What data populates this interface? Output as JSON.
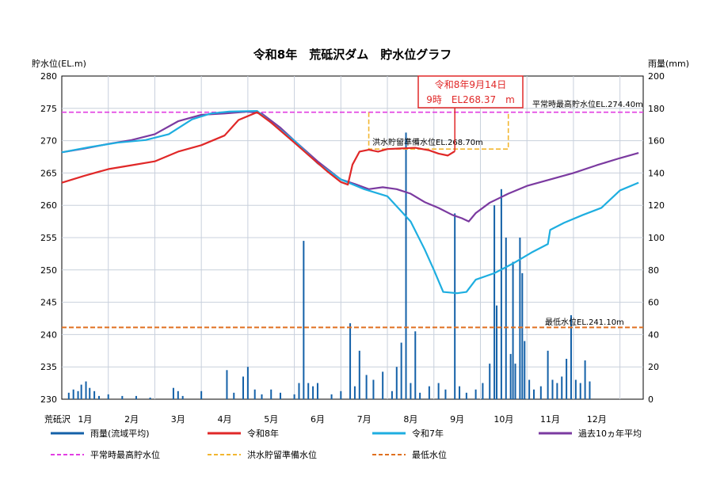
{
  "chart_data": {
    "type": "line",
    "title": "令和8年　荒砥沢ダム　貯水位グラフ",
    "ylabel_left": "貯水位(EL.m)",
    "ylabel_right": "雨量(mm)",
    "ylim_left": [
      230,
      280
    ],
    "ylim_right": [
      0,
      200
    ],
    "yticks_left": [
      "280",
      "275",
      "270",
      "265",
      "260",
      "255",
      "250",
      "245",
      "240",
      "235",
      "230"
    ],
    "yticks_right": [
      "200",
      "180",
      "160",
      "140",
      "120",
      "100",
      "80",
      "60",
      "40",
      "20",
      "0"
    ],
    "xlim_months": [
      0,
      12
    ],
    "x_prefix": "荒砥沢",
    "months": [
      "1月",
      "2月",
      "3月",
      "4月",
      "5月",
      "6月",
      "7月",
      "8月",
      "9月",
      "10月",
      "11月",
      "12月"
    ],
    "grid": true,
    "callout": {
      "line1": "令和8年9月14日",
      "line2": "9時　EL268.37　m",
      "x": 8.45,
      "y": 268.37
    },
    "annotations": {
      "max_normal": "平常時最高貯水位EL.274.40m",
      "flood_ready": "洪水貯留準備水位EL.268.70m",
      "min_level": "最低水位EL.241.10m"
    },
    "reference_lines": {
      "max_normal": {
        "y": 274.4,
        "color": "#e23ee2"
      },
      "min_level": {
        "y": 241.1,
        "color": "#e07020"
      },
      "flood_ready": {
        "color": "#f2b630",
        "points": [
          [
            6.6,
            274.4
          ],
          [
            6.6,
            268.7
          ],
          [
            9.6,
            268.7
          ],
          [
            9.6,
            274.4
          ]
        ]
      }
    },
    "series": [
      {
        "name": "令和8年",
        "color": "#e02828",
        "points": [
          [
            0,
            263.5
          ],
          [
            0.5,
            264.6
          ],
          [
            1.0,
            265.6
          ],
          [
            1.5,
            266.2
          ],
          [
            2.0,
            266.8
          ],
          [
            2.5,
            268.3
          ],
          [
            3.0,
            269.3
          ],
          [
            3.5,
            270.8
          ],
          [
            3.8,
            273.2
          ],
          [
            4.2,
            274.4
          ],
          [
            4.5,
            272.8
          ],
          [
            5.0,
            269.7
          ],
          [
            5.3,
            267.8
          ],
          [
            5.7,
            265.3
          ],
          [
            6.0,
            263.6
          ],
          [
            6.15,
            263.2
          ],
          [
            6.25,
            266.3
          ],
          [
            6.4,
            268.3
          ],
          [
            6.6,
            268.6
          ],
          [
            6.8,
            268.3
          ],
          [
            7.0,
            268.7
          ],
          [
            7.3,
            268.8
          ],
          [
            7.6,
            268.9
          ],
          [
            7.9,
            268.5
          ],
          [
            8.1,
            268.0
          ],
          [
            8.3,
            267.7
          ],
          [
            8.45,
            268.37
          ]
        ]
      },
      {
        "name": "令和7年",
        "color": "#1eaee0",
        "points": [
          [
            0,
            268.2
          ],
          [
            0.6,
            269.0
          ],
          [
            1.2,
            269.7
          ],
          [
            1.8,
            270.1
          ],
          [
            2.3,
            271.0
          ],
          [
            2.8,
            273.3
          ],
          [
            3.2,
            274.2
          ],
          [
            3.6,
            274.5
          ],
          [
            4.2,
            274.6
          ],
          [
            4.5,
            272.8
          ],
          [
            5.0,
            270.0
          ],
          [
            5.5,
            266.5
          ],
          [
            6.0,
            264.0
          ],
          [
            6.5,
            262.5
          ],
          [
            7.0,
            261.4
          ],
          [
            7.5,
            257.5
          ],
          [
            7.8,
            253.2
          ],
          [
            8.0,
            250.0
          ],
          [
            8.2,
            246.6
          ],
          [
            8.5,
            246.4
          ],
          [
            8.7,
            246.6
          ],
          [
            8.9,
            248.5
          ],
          [
            9.3,
            249.5
          ],
          [
            9.7,
            251.0
          ],
          [
            10.1,
            252.7
          ],
          [
            10.45,
            254.0
          ],
          [
            10.5,
            256.2
          ],
          [
            10.8,
            257.3
          ],
          [
            11.2,
            258.5
          ],
          [
            11.6,
            259.6
          ],
          [
            12.0,
            262.3
          ],
          [
            12.4,
            263.5
          ]
        ]
      },
      {
        "name": "過去10ヵ年平均",
        "color": "#7b3aa0",
        "points": [
          [
            0,
            268.2
          ],
          [
            0.5,
            268.8
          ],
          [
            1.0,
            269.5
          ],
          [
            1.5,
            270.1
          ],
          [
            2.0,
            271.0
          ],
          [
            2.5,
            273.0
          ],
          [
            3.0,
            274.0
          ],
          [
            3.5,
            274.2
          ],
          [
            4.0,
            274.5
          ],
          [
            4.3,
            274.2
          ],
          [
            4.7,
            272.0
          ],
          [
            5.0,
            270.0
          ],
          [
            5.5,
            266.8
          ],
          [
            6.0,
            264.0
          ],
          [
            6.3,
            263.3
          ],
          [
            6.6,
            262.5
          ],
          [
            6.9,
            262.8
          ],
          [
            7.2,
            262.5
          ],
          [
            7.5,
            261.8
          ],
          [
            7.8,
            260.5
          ],
          [
            8.1,
            259.6
          ],
          [
            8.4,
            258.5
          ],
          [
            8.6,
            258.0
          ],
          [
            8.75,
            257.5
          ],
          [
            8.9,
            258.8
          ],
          [
            9.2,
            260.4
          ],
          [
            9.6,
            261.8
          ],
          [
            10.0,
            263.0
          ],
          [
            10.5,
            264.0
          ],
          [
            11.0,
            265.0
          ],
          [
            11.5,
            266.2
          ],
          [
            12.0,
            267.3
          ],
          [
            12.4,
            268.1
          ]
        ]
      }
    ],
    "rainfall": {
      "name": "雨量(流域平均)",
      "color": "#1461a8",
      "bars": [
        [
          0.15,
          4
        ],
        [
          0.25,
          6
        ],
        [
          0.35,
          5
        ],
        [
          0.42,
          9
        ],
        [
          0.52,
          11
        ],
        [
          0.6,
          7
        ],
        [
          0.7,
          5
        ],
        [
          0.8,
          2
        ],
        [
          1.0,
          3
        ],
        [
          1.3,
          2
        ],
        [
          1.6,
          2
        ],
        [
          1.9,
          1
        ],
        [
          2.4,
          7
        ],
        [
          2.5,
          5
        ],
        [
          2.6,
          2
        ],
        [
          3.0,
          5
        ],
        [
          3.55,
          18
        ],
        [
          3.7,
          4
        ],
        [
          3.9,
          14
        ],
        [
          4.0,
          20
        ],
        [
          4.15,
          6
        ],
        [
          4.3,
          3
        ],
        [
          4.5,
          6
        ],
        [
          4.7,
          4
        ],
        [
          5.0,
          3
        ],
        [
          5.1,
          10
        ],
        [
          5.2,
          98
        ],
        [
          5.3,
          10
        ],
        [
          5.4,
          8
        ],
        [
          5.5,
          10
        ],
        [
          5.8,
          3
        ],
        [
          6.0,
          5
        ],
        [
          6.2,
          47
        ],
        [
          6.3,
          8
        ],
        [
          6.4,
          30
        ],
        [
          6.55,
          15
        ],
        [
          6.7,
          12
        ],
        [
          6.9,
          17
        ],
        [
          7.1,
          5
        ],
        [
          7.2,
          20
        ],
        [
          7.3,
          35
        ],
        [
          7.4,
          165
        ],
        [
          7.5,
          10
        ],
        [
          7.6,
          42
        ],
        [
          7.7,
          4
        ],
        [
          7.9,
          8
        ],
        [
          8.1,
          10
        ],
        [
          8.25,
          6
        ],
        [
          8.45,
          115
        ],
        [
          8.55,
          8
        ],
        [
          8.7,
          4
        ],
        [
          8.9,
          6
        ],
        [
          9.05,
          10
        ],
        [
          9.2,
          22
        ],
        [
          9.3,
          120
        ],
        [
          9.35,
          58
        ],
        [
          9.45,
          130
        ],
        [
          9.55,
          100
        ],
        [
          9.65,
          28
        ],
        [
          9.7,
          85
        ],
        [
          9.75,
          22
        ],
        [
          9.85,
          100
        ],
        [
          9.9,
          78
        ],
        [
          9.95,
          36
        ],
        [
          10.05,
          12
        ],
        [
          10.15,
          6
        ],
        [
          10.3,
          8
        ],
        [
          10.45,
          30
        ],
        [
          10.55,
          12
        ],
        [
          10.65,
          10
        ],
        [
          10.75,
          14
        ],
        [
          10.85,
          25
        ],
        [
          10.95,
          52
        ],
        [
          11.05,
          12
        ],
        [
          11.15,
          10
        ],
        [
          11.25,
          24
        ],
        [
          11.35,
          11
        ]
      ]
    }
  },
  "legend": [
    {
      "label": "雨量(流域平均)",
      "color": "#1461a8",
      "style": "solid"
    },
    {
      "label": "令和8年",
      "color": "#e02828",
      "style": "solid"
    },
    {
      "label": "令和7年",
      "color": "#1eaee0",
      "style": "solid"
    },
    {
      "label": "過去10ヵ年平均",
      "color": "#7b3aa0",
      "style": "solid"
    },
    {
      "label": "平常時最高貯水位",
      "color": "#e23ee2",
      "style": "dashed"
    },
    {
      "label": "洪水貯留準備水位",
      "color": "#f2b630",
      "style": "dashed"
    },
    {
      "label": "最低水位",
      "color": "#e07020",
      "style": "dashed"
    }
  ]
}
